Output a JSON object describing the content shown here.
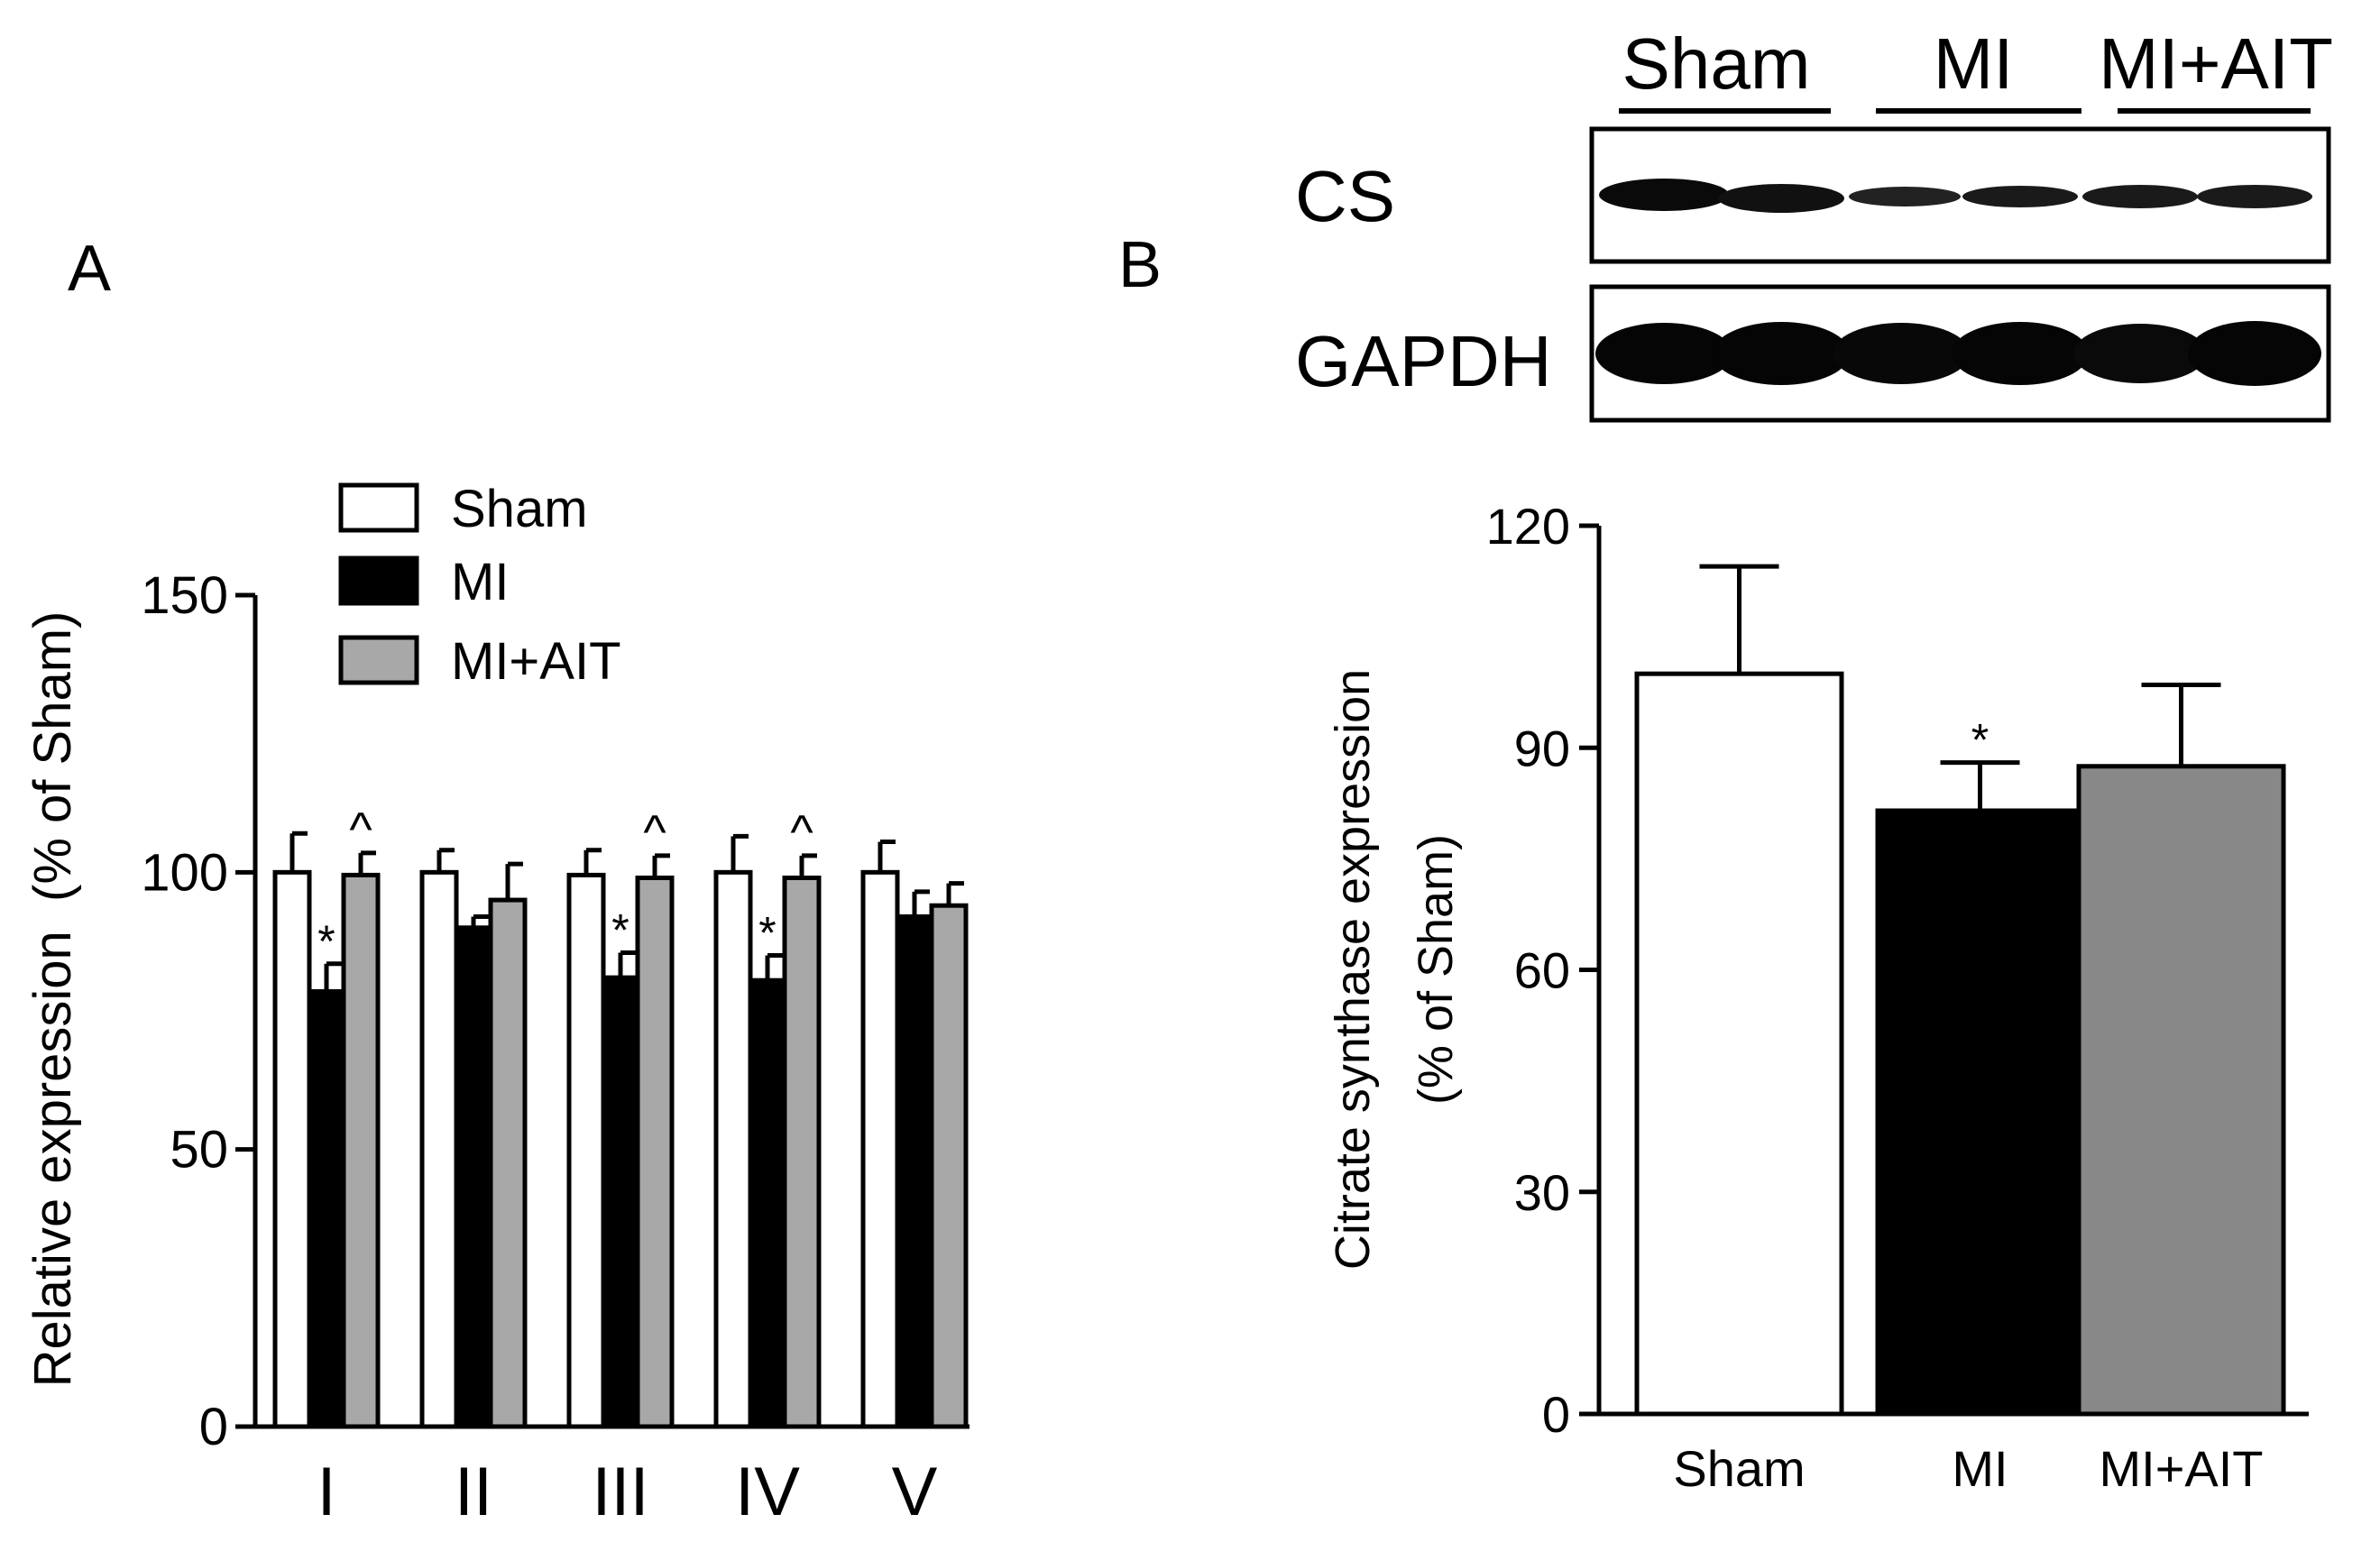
{
  "panel_a": {
    "letter": "A"
  },
  "panel_b": {
    "letter": "B"
  },
  "legend": {
    "entries": [
      {
        "name": "Sham",
        "color": "#ffffff"
      },
      {
        "name": "MI",
        "color": "#000000"
      },
      {
        "name": "MI+AIT",
        "color": "#a8a8a8"
      }
    ]
  },
  "blot": {
    "groups": [
      "Sham",
      "MI",
      "MI+AIT"
    ],
    "rows": [
      "CS",
      "GAPDH"
    ]
  },
  "chart_data": [
    {
      "type": "bar",
      "title": "",
      "xlabel": "",
      "ylabel": "Relative expression  (% of Sham)",
      "categories": [
        "I",
        "II",
        "III",
        "IV",
        "V"
      ],
      "ylim": [
        0,
        150
      ],
      "yticks": [
        "0",
        "50",
        "100",
        "150"
      ],
      "grid": false,
      "legend_position": "top-left",
      "series": [
        {
          "name": "Sham",
          "color": "#ffffff",
          "values": [
            100,
            100,
            99.5,
            100,
            100
          ],
          "errors": [
            7,
            4,
            4.5,
            6.5,
            5.5
          ],
          "marks": [
            "",
            "",
            "",
            "",
            ""
          ]
        },
        {
          "name": "MI",
          "color": "#000000",
          "values": [
            78.5,
            90,
            81,
            80.5,
            92
          ],
          "errors": [
            5,
            2,
            4.5,
            4.5,
            4.5
          ],
          "marks": [
            "*",
            "",
            "*",
            "*",
            ""
          ]
        },
        {
          "name": "MI+AIT",
          "color": "#a8a8a8",
          "values": [
            99.5,
            95,
            99,
            99,
            94
          ],
          "errors": [
            4,
            6.5,
            4,
            4,
            4
          ],
          "marks": [
            "^",
            "",
            "^",
            "^",
            ""
          ]
        }
      ]
    },
    {
      "type": "bar",
      "title": "",
      "xlabel": "",
      "ylabel_line1": "Citrate synthase expression",
      "ylabel_line2": "(% of Sham)",
      "categories": [
        "Sham",
        "MI",
        "MI+AIT"
      ],
      "ylim": [
        0,
        120
      ],
      "yticks": [
        "0",
        "30",
        "60",
        "90",
        "120"
      ],
      "grid": false,
      "values": [
        100,
        81.5,
        87.5
      ],
      "errors": [
        14.5,
        6.5,
        11
      ],
      "colors": [
        "#ffffff",
        "#000000",
        "#888888"
      ],
      "marks": [
        "",
        "*",
        ""
      ]
    }
  ]
}
